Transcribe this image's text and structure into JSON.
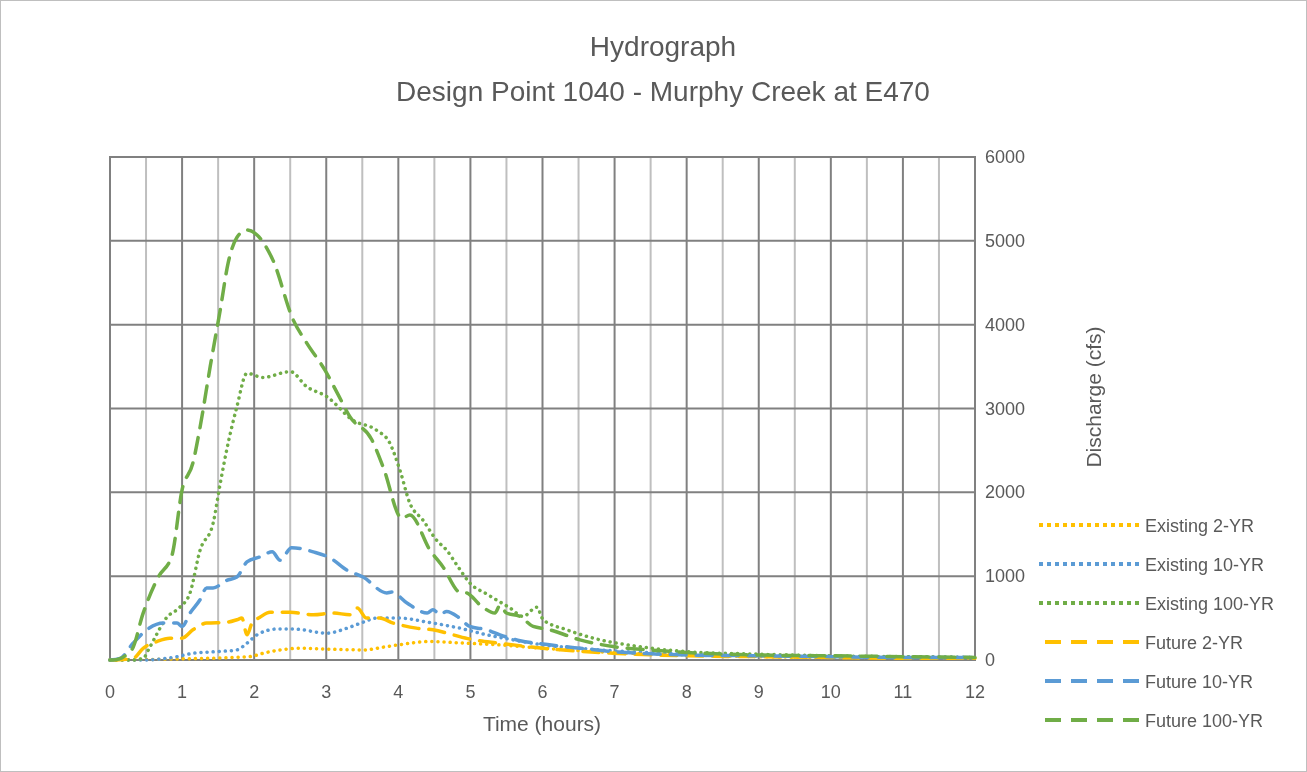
{
  "chart_data": {
    "type": "line",
    "title": "Hydrograph",
    "subtitle": "Design Point 1040 - Murphy Creek at E470",
    "xlabel": "Time (hours)",
    "y2label": "Discharge (cfs)",
    "xlim": [
      0,
      12
    ],
    "xticks": [
      0,
      {
        "value": 0.5,
        "label": null
      },
      1,
      {
        "value": 1.5,
        "label": null
      },
      2,
      {
        "value": 2.5,
        "label": null
      },
      3,
      {
        "value": 3.5,
        "label": null
      },
      4,
      {
        "value": 4.5,
        "label": null
      },
      5,
      {
        "value": 5.5,
        "label": null
      },
      6,
      {
        "value": 6.5,
        "label": null
      },
      7,
      {
        "value": 7.5,
        "label": null
      },
      8,
      {
        "value": 8.5,
        "label": null
      },
      9,
      {
        "value": 9.5,
        "label": null
      },
      10,
      {
        "value": 10.5,
        "label": null
      },
      11,
      {
        "value": 11.5,
        "label": null
      },
      12
    ],
    "y2lim": [
      0,
      6000
    ],
    "y2ticks": [
      0,
      1000,
      2000,
      3000,
      4000,
      5000,
      6000
    ],
    "grid": true,
    "legend": "right",
    "series": [
      {
        "name": "Existing 2-YR",
        "color": "#ffc000",
        "line_style": "dotted",
        "axis": "y2",
        "x": [
          0,
          0.79,
          1.94,
          2.12,
          2.36,
          2.64,
          3.01,
          3.51,
          3.84,
          4.0,
          4.41,
          4.95,
          5.41,
          6.01,
          6.98,
          8,
          9,
          10,
          11,
          12
        ],
        "values": [
          0,
          10,
          40,
          80,
          120,
          140,
          130,
          120,
          160,
          180,
          220,
          200,
          180,
          140,
          90,
          60,
          40,
          30,
          30,
          20
        ]
      },
      {
        "name": "Existing 10-YR",
        "color": "#5b9bd5",
        "line_style": "dotted",
        "axis": "y2",
        "x": [
          0,
          0.46,
          0.93,
          1.15,
          1.48,
          1.76,
          1.9,
          2.04,
          2.32,
          2.54,
          3.01,
          3.29,
          3.51,
          3.7,
          4.02,
          4.41,
          4.85,
          5.23,
          5.59,
          6.01,
          6.52,
          6.98,
          8,
          9,
          10,
          11,
          12
        ],
        "values": [
          0,
          0,
          40,
          80,
          100,
          120,
          200,
          300,
          370,
          370,
          320,
          380,
          450,
          500,
          500,
          450,
          380,
          300,
          240,
          180,
          140,
          110,
          70,
          50,
          40,
          40,
          30
        ]
      },
      {
        "name": "Existing 100-YR",
        "color": "#70ad47",
        "line_style": "dotted",
        "axis": "y2",
        "x": [
          0,
          0.3,
          0.46,
          0.55,
          0.79,
          0.97,
          1.11,
          1.25,
          1.43,
          1.53,
          1.62,
          1.76,
          1.9,
          2.12,
          2.5,
          2.73,
          3.01,
          3.37,
          3.7,
          3.88,
          4.02,
          4.16,
          4.34,
          4.53,
          4.67,
          4.83,
          4.99,
          5.24,
          5.55,
          5.73,
          5.92,
          6.01,
          6.34,
          6.8,
          7.26,
          8,
          9,
          10,
          11,
          12
        ],
        "values": [
          0,
          0,
          20,
          150,
          510,
          630,
          800,
          1310,
          1630,
          2110,
          2510,
          3020,
          3420,
          3370,
          3440,
          3260,
          3140,
          2860,
          2740,
          2590,
          2270,
          1870,
          1670,
          1430,
          1310,
          1110,
          920,
          780,
          620,
          520,
          630,
          480,
          360,
          240,
          170,
          100,
          70,
          50,
          40,
          30
        ]
      },
      {
        "name": "Future 2-YR",
        "color": "#ffc000",
        "line_style": "dashed",
        "axis": "y2",
        "x": [
          0,
          0.32,
          0.46,
          0.65,
          0.83,
          1,
          1.15,
          1.34,
          1.62,
          1.76,
          1.83,
          1.9,
          1.97,
          2.08,
          2.22,
          2.5,
          2.82,
          3.09,
          3.33,
          3.43,
          3.56,
          3.74,
          3.93,
          4.02,
          4.25,
          4.48,
          4.76,
          4.99,
          5.41,
          6.01,
          6.98,
          8,
          9,
          10,
          11,
          12
        ],
        "values": [
          0,
          20,
          140,
          220,
          260,
          260,
          360,
          440,
          450,
          480,
          500,
          300,
          440,
          510,
          570,
          570,
          540,
          560,
          540,
          620,
          500,
          500,
          440,
          420,
          380,
          360,
          300,
          250,
          200,
          140,
          80,
          50,
          40,
          30,
          20,
          20
        ]
      },
      {
        "name": "Future 10-YR",
        "color": "#5b9bd5",
        "line_style": "dashed",
        "axis": "y2",
        "x": [
          0,
          0.14,
          0.32,
          0.51,
          0.74,
          0.93,
          1,
          1.11,
          1.25,
          1.34,
          1.43,
          1.62,
          1.76,
          1.9,
          2.08,
          2.25,
          2.36,
          2.52,
          2.82,
          3.05,
          3.29,
          3.51,
          3.84,
          3.91,
          4.12,
          4.4,
          4.48,
          4.58,
          4.67,
          4.85,
          4.99,
          5.23,
          5.41,
          5.69,
          6.01,
          6.52,
          6.98,
          8,
          9,
          10,
          11,
          12
        ],
        "values": [
          0,
          20,
          200,
          360,
          440,
          440,
          400,
          560,
          720,
          860,
          860,
          950,
          990,
          1170,
          1230,
          1290,
          1190,
          1340,
          1290,
          1220,
          1070,
          990,
          800,
          810,
          680,
          560,
          600,
          540,
          580,
          500,
          400,
          360,
          300,
          230,
          190,
          140,
          100,
          60,
          50,
          40,
          30,
          30
        ]
      },
      {
        "name": "Future 100-YR",
        "color": "#70ad47",
        "line_style": "dashed",
        "axis": "y2",
        "x": [
          0,
          0.05,
          0.3,
          0.46,
          0.67,
          0.86,
          1,
          1.15,
          1.25,
          1.39,
          1.53,
          1.64,
          1.76,
          1.9,
          2.04,
          2.26,
          2.54,
          2.73,
          2.98,
          3.15,
          3.33,
          3.63,
          3.79,
          4.05,
          4.16,
          4.44,
          4.62,
          4.85,
          4.95,
          5.13,
          5.34,
          5.41,
          5.5,
          5.69,
          5.87,
          6.06,
          6.52,
          6.98,
          7.49,
          8,
          9,
          10,
          11,
          12
        ],
        "values": [
          0,
          0,
          120,
          560,
          990,
          1250,
          2030,
          2350,
          2780,
          3500,
          4180,
          4740,
          5040,
          5130,
          5070,
          4770,
          4060,
          3780,
          3460,
          3190,
          2900,
          2630,
          2300,
          1690,
          1730,
          1310,
          1110,
          810,
          800,
          660,
          560,
          650,
          560,
          520,
          400,
          370,
          240,
          160,
          120,
          90,
          60,
          50,
          40,
          30
        ]
      }
    ]
  }
}
